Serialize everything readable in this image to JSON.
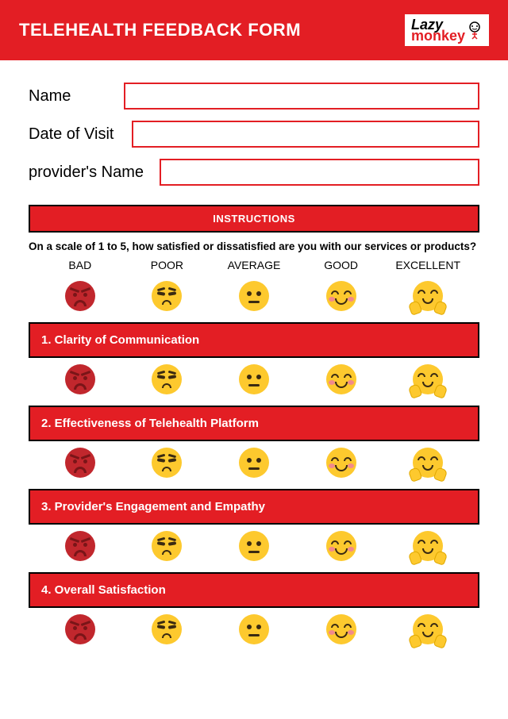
{
  "header": {
    "title": "TELEHEALTH FEEDBACK FORM",
    "logo_part1": "Lazy",
    "logo_part2": "monkey"
  },
  "fields": [
    {
      "label": "Name",
      "label_width": "120px"
    },
    {
      "label": "Date of Visit",
      "label_width": "130px"
    },
    {
      "label": "provider's Name",
      "label_width": "165px"
    }
  ],
  "instructions": {
    "bar_label": "INSTRUCTIONS",
    "text": "On a scale of 1 to 5, how satisfied or dissatisfied are you with our services or products?"
  },
  "rating_labels": [
    "BAD",
    "POOR",
    "AVERAGE",
    "GOOD",
    "EXCELLENT"
  ],
  "questions": [
    "1. Clarity of Communication",
    "2. Effectiveness of Telehealth Platform",
    "3. Provider's Engagement and Empathy",
    "4. Overall Satisfaction"
  ],
  "colors": {
    "brand_red": "#e31e24",
    "emoji_yellow": "#fdc92e",
    "emoji_red": "#c1272d",
    "border_black": "#000000"
  }
}
